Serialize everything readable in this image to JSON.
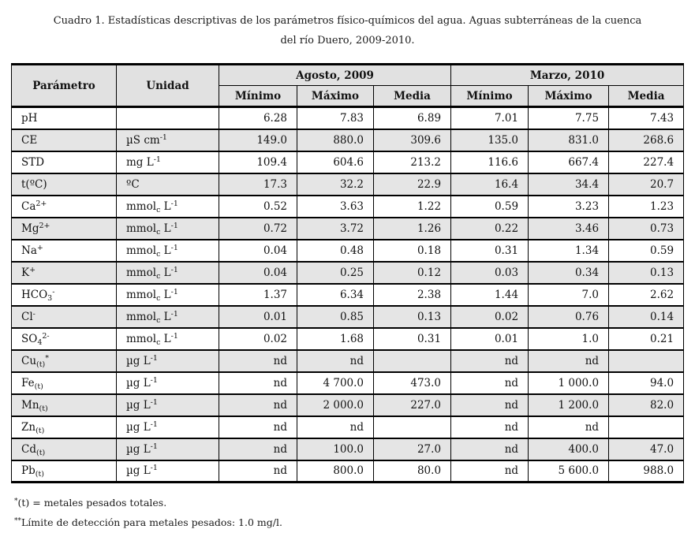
{
  "caption": {
    "line1": "Cuadro 1. Estadísticas descriptivas de los parámetros físico-químicos del agua. Aguas subterráneas de la cuenca",
    "line2": "del río Duero, 2009-2010."
  },
  "table": {
    "headers": {
      "parametro": "Parámetro",
      "unidad": "Unidad",
      "group_agosto": "Agosto, 2009",
      "group_marzo": "Marzo, 2010",
      "sub": [
        "Mínimo",
        "Máximo",
        "Media",
        "Mínimo",
        "Máximo",
        "Media"
      ]
    },
    "rows": [
      {
        "param": [
          [
            "n",
            "pH"
          ]
        ],
        "unit": [],
        "values": [
          "6.28",
          "7.83",
          "6.89",
          "7.01",
          "7.75",
          "7.43"
        ]
      },
      {
        "param": [
          [
            "n",
            "CE"
          ]
        ],
        "unit": [
          [
            "n",
            "µS cm"
          ],
          [
            "sup",
            "-1"
          ]
        ],
        "values": [
          "149.0",
          "880.0",
          "309.6",
          "135.0",
          "831.0",
          "268.6"
        ]
      },
      {
        "param": [
          [
            "n",
            "STD"
          ]
        ],
        "unit": [
          [
            "n",
            "mg L"
          ],
          [
            "sup",
            "-1"
          ]
        ],
        "values": [
          "109.4",
          "604.6",
          "213.2",
          "116.6",
          "667.4",
          "227.4"
        ]
      },
      {
        "param": [
          [
            "n",
            "t(ºC)"
          ]
        ],
        "unit": [
          [
            "n",
            "ºC"
          ]
        ],
        "values": [
          "17.3",
          "32.2",
          "22.9",
          "16.4",
          "34.4",
          "20.7"
        ]
      },
      {
        "param": [
          [
            "n",
            "Ca"
          ],
          [
            "sup",
            "2+"
          ]
        ],
        "unit": [
          [
            "n",
            "mmol"
          ],
          [
            "sub",
            "c"
          ],
          [
            "n",
            " L"
          ],
          [
            "sup",
            "-1"
          ]
        ],
        "values": [
          "0.52",
          "3.63",
          "1.22",
          "0.59",
          "3.23",
          "1.23"
        ]
      },
      {
        "param": [
          [
            "n",
            "Mg"
          ],
          [
            "sup",
            "2+"
          ]
        ],
        "unit": [
          [
            "n",
            "mmol"
          ],
          [
            "sub",
            "c"
          ],
          [
            "n",
            " L"
          ],
          [
            "sup",
            "-1"
          ]
        ],
        "values": [
          "0.72",
          "3.72",
          "1.26",
          "0.22",
          "3.46",
          "0.73"
        ]
      },
      {
        "param": [
          [
            "n",
            "Na"
          ],
          [
            "sup",
            "+"
          ]
        ],
        "unit": [
          [
            "n",
            "mmol"
          ],
          [
            "sub",
            "c"
          ],
          [
            "n",
            " L"
          ],
          [
            "sup",
            "-1"
          ]
        ],
        "values": [
          "0.04",
          "0.48",
          "0.18",
          "0.31",
          "1.34",
          "0.59"
        ]
      },
      {
        "param": [
          [
            "n",
            "K"
          ],
          [
            "sup",
            "+"
          ]
        ],
        "unit": [
          [
            "n",
            "mmol"
          ],
          [
            "sub",
            "c"
          ],
          [
            "n",
            " L"
          ],
          [
            "sup",
            "-1"
          ]
        ],
        "values": [
          "0.04",
          "0.25",
          "0.12",
          "0.03",
          "0.34",
          "0.13"
        ]
      },
      {
        "param": [
          [
            "n",
            "HCO"
          ],
          [
            "sub",
            "3"
          ],
          [
            "sup",
            "-"
          ]
        ],
        "unit": [
          [
            "n",
            "mmol"
          ],
          [
            "sub",
            "c"
          ],
          [
            "n",
            " L"
          ],
          [
            "sup",
            "-1"
          ]
        ],
        "values": [
          "1.37",
          "6.34",
          "2.38",
          "1.44",
          "7.0",
          "2.62"
        ]
      },
      {
        "param": [
          [
            "n",
            "Cl"
          ],
          [
            "sup",
            "-"
          ]
        ],
        "unit": [
          [
            "n",
            "mmol"
          ],
          [
            "sub",
            "c"
          ],
          [
            "n",
            " L"
          ],
          [
            "sup",
            "-1"
          ]
        ],
        "values": [
          "0.01",
          "0.85",
          "0.13",
          "0.02",
          "0.76",
          "0.14"
        ]
      },
      {
        "param": [
          [
            "n",
            "SO"
          ],
          [
            "sub",
            "4"
          ],
          [
            "sup",
            "2-"
          ]
        ],
        "unit": [
          [
            "n",
            "mmol"
          ],
          [
            "sub",
            "c"
          ],
          [
            "n",
            " L"
          ],
          [
            "sup",
            "-1"
          ]
        ],
        "values": [
          "0.02",
          "1.68",
          "0.31",
          "0.01",
          "1.0",
          "0.21"
        ]
      },
      {
        "param": [
          [
            "n",
            "Cu"
          ],
          [
            "sub",
            "(t)"
          ],
          [
            "sup",
            "*"
          ]
        ],
        "unit": [
          [
            "n",
            "µg L"
          ],
          [
            "sup",
            "-1"
          ]
        ],
        "values": [
          "nd",
          "nd",
          "",
          "nd",
          "nd",
          ""
        ]
      },
      {
        "param": [
          [
            "n",
            "Fe"
          ],
          [
            "sub",
            "(t)"
          ]
        ],
        "unit": [
          [
            "n",
            "µg L"
          ],
          [
            "sup",
            "-1"
          ]
        ],
        "values": [
          "nd",
          "4 700.0",
          "473.0",
          "nd",
          "1 000.0",
          "94.0"
        ]
      },
      {
        "param": [
          [
            "n",
            "Mn"
          ],
          [
            "sub",
            "(t)"
          ]
        ],
        "unit": [
          [
            "n",
            "µg L"
          ],
          [
            "sup",
            "-1"
          ]
        ],
        "values": [
          "nd",
          "2 000.0",
          "227.0",
          "nd",
          "1 200.0",
          "82.0"
        ]
      },
      {
        "param": [
          [
            "n",
            "Zn"
          ],
          [
            "sub",
            "(t)"
          ]
        ],
        "unit": [
          [
            "n",
            "µg L"
          ],
          [
            "sup",
            "-1"
          ]
        ],
        "values": [
          "nd",
          "nd",
          "",
          "nd",
          "nd",
          ""
        ]
      },
      {
        "param": [
          [
            "n",
            "Cd"
          ],
          [
            "sub",
            "(t)"
          ]
        ],
        "unit": [
          [
            "n",
            "µg L"
          ],
          [
            "sup",
            "-1"
          ]
        ],
        "values": [
          "nd",
          "100.0",
          "27.0",
          "nd",
          "400.0",
          "47.0"
        ]
      },
      {
        "param": [
          [
            "n",
            "Pb"
          ],
          [
            "sub",
            "(t)"
          ]
        ],
        "unit": [
          [
            "n",
            "µg L"
          ],
          [
            "sup",
            "-1"
          ]
        ],
        "values": [
          "nd",
          "800.0",
          "80.0",
          "nd",
          "5 600.0",
          "988.0"
        ]
      }
    ]
  },
  "footnotes": [
    {
      "marker": "*",
      "text": "(t) = metales pesados totales."
    },
    {
      "marker": "**",
      "text": "Límite de detección para metales pesados: 1.0 mg/l."
    }
  ],
  "colors": {
    "header_bg": "#e1e1e1",
    "row_alt_bg": "#e5e5e5",
    "border": "#000000",
    "text": "#121212"
  }
}
